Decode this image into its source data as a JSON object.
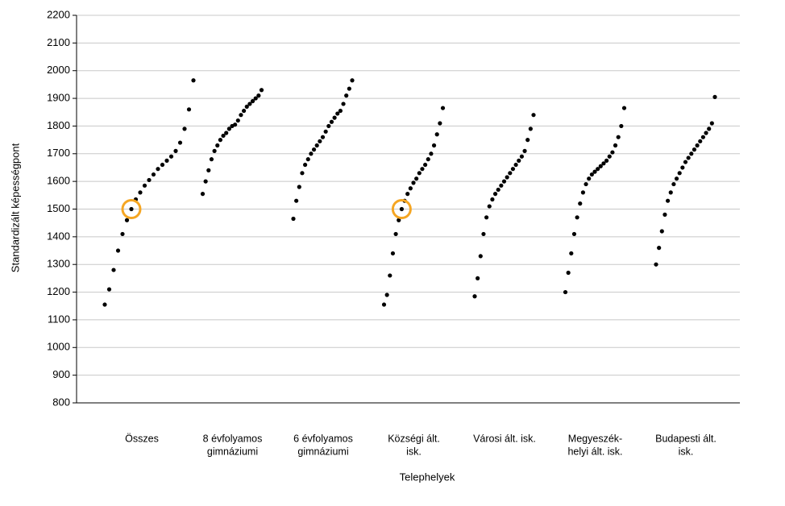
{
  "chart_data": {
    "type": "scatter",
    "x_label": "Telephelyek",
    "y_label": "Standardizált képességpont",
    "categories": [
      [
        "Összes"
      ],
      [
        "8 évfolyamos",
        "gimnáziumi"
      ],
      [
        "6 évfolyamos",
        "gimnáziumi"
      ],
      [
        "Községi ált.",
        "isk."
      ],
      [
        "Városi ált. isk."
      ],
      [
        "Megyeszék-",
        "helyi ált. isk."
      ],
      [
        "Budapesti ált.",
        "isk."
      ]
    ],
    "series": [
      {
        "color": "#000000",
        "values": [
          1155,
          1210,
          1280,
          1350,
          1410,
          1460,
          1500,
          1535,
          1560,
          1585,
          1605,
          1625,
          1645,
          1660,
          1675,
          1690,
          1710,
          1740,
          1790,
          1860,
          1965
        ]
      },
      {
        "color": "#000000",
        "values": [
          1555,
          1600,
          1640,
          1680,
          1710,
          1730,
          1750,
          1765,
          1775,
          1790,
          1800,
          1805,
          1820,
          1840,
          1855,
          1870,
          1880,
          1890,
          1900,
          1910,
          1930
        ]
      },
      {
        "color": "#000000",
        "values": [
          1465,
          1530,
          1580,
          1630,
          1660,
          1680,
          1700,
          1715,
          1730,
          1745,
          1760,
          1780,
          1800,
          1815,
          1830,
          1845,
          1855,
          1880,
          1910,
          1935,
          1965
        ]
      },
      {
        "color": "#000000",
        "values": [
          1155,
          1190,
          1260,
          1340,
          1410,
          1460,
          1500,
          1530,
          1555,
          1575,
          1595,
          1610,
          1630,
          1645,
          1660,
          1680,
          1700,
          1730,
          1770,
          1810,
          1865
        ]
      },
      {
        "color": "#000000",
        "values": [
          1185,
          1250,
          1330,
          1410,
          1470,
          1510,
          1535,
          1555,
          1570,
          1585,
          1600,
          1615,
          1630,
          1645,
          1660,
          1675,
          1690,
          1710,
          1750,
          1790,
          1840
        ]
      },
      {
        "color": "#000000",
        "values": [
          1200,
          1270,
          1340,
          1410,
          1470,
          1520,
          1560,
          1590,
          1610,
          1625,
          1635,
          1645,
          1655,
          1665,
          1675,
          1690,
          1705,
          1730,
          1760,
          1800,
          1865
        ]
      },
      {
        "color": "#000000",
        "values": [
          1300,
          1360,
          1420,
          1480,
          1530,
          1560,
          1590,
          1610,
          1630,
          1650,
          1670,
          1685,
          1700,
          1715,
          1730,
          1745,
          1760,
          1775,
          1790,
          1810,
          1905
        ]
      }
    ],
    "highlights": [
      {
        "category": 0,
        "value": 1500,
        "color": "#f5a623"
      },
      {
        "category": 3,
        "value": 1500,
        "color": "#f5a623"
      }
    ],
    "ylim": [
      800,
      2200
    ],
    "yticks": [
      800,
      900,
      1000,
      1100,
      1200,
      1300,
      1400,
      1500,
      1600,
      1700,
      1800,
      1900,
      2000,
      2100,
      2200
    ],
    "grid": true
  }
}
